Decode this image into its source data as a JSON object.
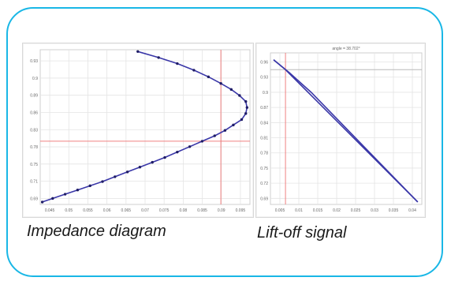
{
  "captions": {
    "left": "Impedance diagram",
    "right": "Lift-off signal"
  },
  "colors": {
    "frame": "#19b7e6",
    "curve": "#3a37a8",
    "marker": "#1f1d66",
    "crosshair": "#f08080",
    "grid": "#e4e4e4"
  },
  "chart_data": [
    {
      "type": "line",
      "title": "",
      "xlabel": "",
      "ylabel": "",
      "xlim": [
        0.045,
        0.0955
      ],
      "ylim": [
        0.675,
        0.932
      ],
      "x_ticks": [
        "0.045",
        "0.05",
        "0.055",
        "0.06",
        "0.065",
        "0.07",
        "0.075",
        "0.08",
        "0.085",
        "0.09",
        "0.095"
      ],
      "y_ticks": [
        "0.69",
        "0.71",
        "0.75",
        "0.78",
        "0.83",
        "0.86",
        "0.89",
        "0.9",
        "0.93"
      ],
      "grid": true,
      "crosshair": {
        "x": 0.0885,
        "y": 0.78
      },
      "series": [
        {
          "x": [
            0.0455,
            0.048,
            0.051,
            0.054,
            0.057,
            0.06,
            0.063,
            0.066,
            0.069,
            0.072,
            0.075,
            0.078,
            0.081,
            0.084,
            0.087,
            0.0895,
            0.0915,
            0.0935,
            0.0945,
            0.0948,
            0.0945,
            0.093,
            0.091,
            0.0885,
            0.0855,
            0.082,
            0.078,
            0.0735,
            0.0685
          ],
          "y": [
            0.679,
            0.685,
            0.692,
            0.699,
            0.706,
            0.713,
            0.721,
            0.729,
            0.737,
            0.745,
            0.753,
            0.762,
            0.771,
            0.78,
            0.789,
            0.798,
            0.807,
            0.816,
            0.826,
            0.836,
            0.846,
            0.856,
            0.866,
            0.876,
            0.887,
            0.898,
            0.909,
            0.919,
            0.929
          ]
        }
      ]
    },
    {
      "type": "line",
      "title": "angle = 38.702°",
      "xlabel": "",
      "ylabel": "",
      "xlim": [
        0.002,
        0.0503
      ],
      "ylim": [
        0.665,
        0.972
      ],
      "x_ticks": [
        "0.005",
        "0.01",
        "0.015",
        "0.02",
        "0.025",
        "0.03",
        "0.035",
        "0.04"
      ],
      "y_ticks": [
        "0.96",
        "0.93",
        "0.9",
        "0.87",
        "0.84",
        "0.81",
        "0.78",
        "0.75",
        "0.72",
        "0.69"
      ],
      "grid": true,
      "crosshair": {
        "x": 0.0068,
        "y": 0.938
      },
      "series": [
        {
          "x": [
            0.003,
            0.0068,
            0.049
          ],
          "y": [
            0.958,
            0.938,
            0.67
          ]
        },
        {
          "x": [
            0.003,
            0.008,
            0.015,
            0.049
          ],
          "y": [
            0.958,
            0.932,
            0.892,
            0.67
          ]
        }
      ]
    }
  ]
}
